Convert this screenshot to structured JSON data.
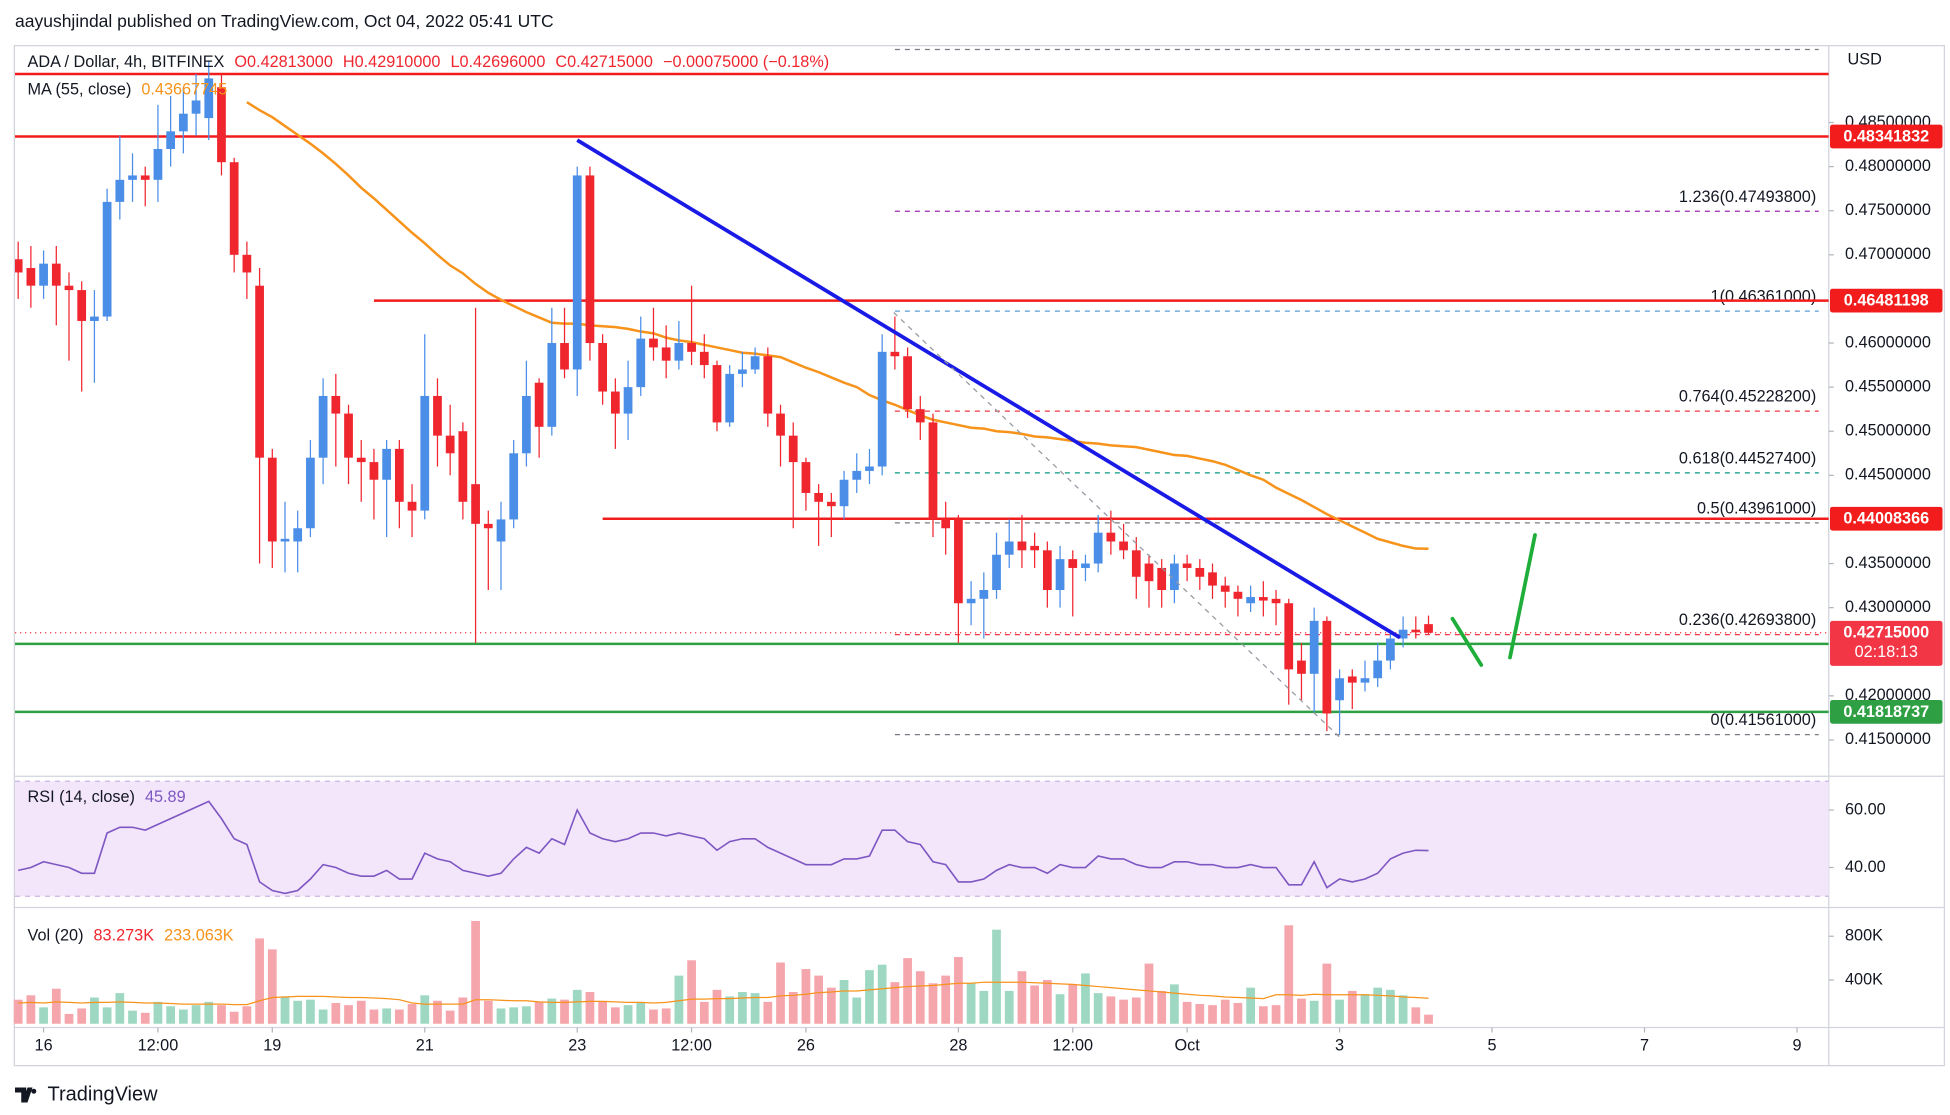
{
  "header": {
    "publisher": "aayushjindal published on TradingView.com, Oct 04, 2022 05:41 UTC"
  },
  "footer": {
    "brand": "TradingView"
  },
  "chart_data": {
    "type": "candlestick",
    "symbol": "ADA / Dollar, 4h, BITFINEX",
    "ohlc_labels": [
      "O0.42813000",
      "H0.42910000",
      "L0.42696000",
      "C0.42715000",
      "−0.00075000 (−0.18%)"
    ],
    "currency": "USD",
    "up_color": "#4a8ee8",
    "down_color": "#f0262f",
    "xlim": [
      -9,
      562
    ],
    "xticks": [
      {
        "value": 0,
        "label": "16"
      },
      {
        "value": 36,
        "label": "12:00"
      },
      {
        "value": 72,
        "label": "19"
      },
      {
        "value": 120,
        "label": "21"
      },
      {
        "value": 168,
        "label": "23"
      },
      {
        "value": 204,
        "label": "12:00"
      },
      {
        "value": 240,
        "label": "26"
      },
      {
        "value": 288,
        "label": "28"
      },
      {
        "value": 324,
        "label": "12:00"
      },
      {
        "value": 360,
        "label": "Oct"
      },
      {
        "value": 408,
        "label": "3"
      },
      {
        "value": 456,
        "label": "5"
      },
      {
        "value": 504,
        "label": "7"
      },
      {
        "value": 552,
        "label": "9"
      }
    ],
    "ylim": [
      0.41131,
      0.49322
    ],
    "yticks": [
      {
        "value": 0.485,
        "label": "0.48500000"
      },
      {
        "value": 0.48,
        "label": "0.48000000"
      },
      {
        "value": 0.475,
        "label": "0.47500000"
      },
      {
        "value": 0.47,
        "label": "0.47000000"
      },
      {
        "value": 0.46,
        "label": "0.46000000"
      },
      {
        "value": 0.455,
        "label": "0.45500000"
      },
      {
        "value": 0.45,
        "label": "0.45000000"
      },
      {
        "value": 0.445,
        "label": "0.44500000"
      },
      {
        "value": 0.435,
        "label": "0.43500000"
      },
      {
        "value": 0.43,
        "label": "0.43000000"
      },
      {
        "value": 0.42,
        "label": "0.42000000"
      },
      {
        "value": 0.415,
        "label": "0.41500000"
      }
    ],
    "x": [
      -8,
      -4,
      0,
      4,
      8,
      12,
      16,
      20,
      24,
      28,
      32,
      36,
      40,
      44,
      48,
      52,
      56,
      60,
      64,
      68,
      72,
      76,
      80,
      84,
      88,
      92,
      96,
      100,
      104,
      108,
      112,
      116,
      120,
      124,
      128,
      132,
      136,
      140,
      144,
      148,
      152,
      156,
      160,
      164,
      168,
      172,
      176,
      180,
      184,
      188,
      192,
      196,
      200,
      204,
      208,
      212,
      216,
      220,
      224,
      228,
      232,
      236,
      240,
      244,
      248,
      252,
      256,
      260,
      264,
      268,
      272,
      276,
      280,
      284,
      288,
      292,
      296,
      300,
      304,
      308,
      312,
      316,
      320,
      324,
      328,
      332,
      336,
      340,
      344,
      348,
      352,
      356,
      360,
      364,
      368,
      372,
      376,
      380,
      384,
      388,
      392,
      396,
      400,
      404,
      408,
      412,
      416,
      420,
      424,
      428,
      432,
      436
    ],
    "open": [
      0.4695,
      0.4685,
      0.4665,
      0.469,
      0.4665,
      0.466,
      0.4625,
      0.463,
      0.476,
      0.4785,
      0.479,
      0.4785,
      0.482,
      0.484,
      0.486,
      0.4855,
      0.489,
      0.4805,
      0.47,
      0.4665,
      0.447,
      0.4375,
      0.4375,
      0.439,
      0.447,
      0.454,
      0.452,
      0.447,
      0.4465,
      0.4445,
      0.448,
      0.442,
      0.441,
      0.454,
      0.4495,
      0.45,
      0.444,
      0.4395,
      0.4375,
      0.44,
      0.4475,
      0.4555,
      0.4505,
      0.46,
      0.457,
      0.479,
      0.46,
      0.4545,
      0.452,
      0.455,
      0.4605,
      0.4595,
      0.458,
      0.46,
      0.459,
      0.4575,
      0.451,
      0.4565,
      0.457,
      0.4585,
      0.452,
      0.4495,
      0.4465,
      0.443,
      0.442,
      0.4415,
      0.4445,
      0.4455,
      0.446,
      0.459,
      0.4585,
      0.4525,
      0.451,
      0.44,
      0.44,
      0.4305,
      0.431,
      0.432,
      0.436,
      0.4375,
      0.437,
      0.4365,
      0.432,
      0.4355,
      0.4345,
      0.435,
      0.4385,
      0.4375,
      0.4365,
      0.435,
      0.4345,
      0.432,
      0.435,
      0.4345,
      0.434,
      0.4325,
      0.4318,
      0.4305,
      0.4312,
      0.431,
      0.4305,
      0.424,
      0.4225,
      0.4285,
      0.4195,
      0.4222,
      0.4215,
      0.422,
      0.424,
      0.4265,
      0.4275,
      0.42813
    ],
    "high": [
      0.4715,
      0.471,
      0.4705,
      0.471,
      0.468,
      0.467,
      0.466,
      0.4775,
      0.4835,
      0.4815,
      0.48,
      0.487,
      0.488,
      0.489,
      0.4905,
      0.492,
      0.4905,
      0.481,
      0.4715,
      0.4685,
      0.448,
      0.442,
      0.441,
      0.449,
      0.456,
      0.4565,
      0.453,
      0.449,
      0.448,
      0.449,
      0.449,
      0.444,
      0.461,
      0.456,
      0.453,
      0.451,
      0.464,
      0.441,
      0.442,
      0.449,
      0.458,
      0.456,
      0.464,
      0.464,
      0.48,
      0.48,
      0.461,
      0.456,
      0.458,
      0.463,
      0.464,
      0.462,
      0.4625,
      0.4665,
      0.461,
      0.458,
      0.4575,
      0.459,
      0.4595,
      0.4595,
      0.453,
      0.451,
      0.447,
      0.444,
      0.443,
      0.4455,
      0.4475,
      0.448,
      0.461,
      0.463,
      0.4595,
      0.454,
      0.452,
      0.442,
      0.4405,
      0.433,
      0.434,
      0.4385,
      0.44,
      0.4405,
      0.4385,
      0.4375,
      0.437,
      0.4365,
      0.436,
      0.4405,
      0.441,
      0.4395,
      0.438,
      0.436,
      0.4355,
      0.436,
      0.436,
      0.4355,
      0.435,
      0.4335,
      0.4325,
      0.4325,
      0.433,
      0.432,
      0.431,
      0.426,
      0.43,
      0.429,
      0.423,
      0.423,
      0.424,
      0.426,
      0.4275,
      0.429,
      0.429,
      0.4291
    ],
    "low": [
      0.465,
      0.464,
      0.465,
      0.462,
      0.458,
      0.4545,
      0.4555,
      0.4625,
      0.474,
      0.476,
      0.4755,
      0.476,
      0.48,
      0.4815,
      0.4835,
      0.483,
      0.479,
      0.468,
      0.465,
      0.435,
      0.4345,
      0.434,
      0.434,
      0.438,
      0.444,
      0.446,
      0.444,
      0.442,
      0.44,
      0.438,
      0.439,
      0.438,
      0.44,
      0.446,
      0.445,
      0.44,
      0.426,
      0.432,
      0.432,
      0.439,
      0.446,
      0.447,
      0.4495,
      0.456,
      0.454,
      0.458,
      0.453,
      0.448,
      0.449,
      0.454,
      0.458,
      0.456,
      0.457,
      0.4575,
      0.456,
      0.45,
      0.4505,
      0.455,
      0.4565,
      0.4505,
      0.446,
      0.439,
      0.441,
      0.437,
      0.438,
      0.44,
      0.443,
      0.444,
      0.445,
      0.457,
      0.4515,
      0.449,
      0.438,
      0.436,
      0.426,
      0.428,
      0.4265,
      0.431,
      0.4345,
      0.4345,
      0.4345,
      0.43,
      0.43,
      0.429,
      0.433,
      0.434,
      0.436,
      0.4355,
      0.431,
      0.43,
      0.43,
      0.4305,
      0.433,
      0.432,
      0.431,
      0.43,
      0.429,
      0.4295,
      0.429,
      0.428,
      0.419,
      0.4195,
      0.418,
      0.416,
      0.4156,
      0.4185,
      0.4205,
      0.421,
      0.423,
      0.4255,
      0.4265,
      0.42696
    ],
    "close": [
      0.468,
      0.4665,
      0.469,
      0.4665,
      0.466,
      0.4625,
      0.463,
      0.476,
      0.4785,
      0.479,
      0.4785,
      0.482,
      0.484,
      0.486,
      0.4875,
      0.49,
      0.4805,
      0.47,
      0.468,
      0.447,
      0.4375,
      0.4378,
      0.439,
      0.447,
      0.454,
      0.452,
      0.447,
      0.4465,
      0.4445,
      0.448,
      0.442,
      0.441,
      0.454,
      0.4495,
      0.4475,
      0.442,
      0.4395,
      0.439,
      0.44,
      0.4475,
      0.454,
      0.4505,
      0.46,
      0.457,
      0.479,
      0.46,
      0.4545,
      0.452,
      0.455,
      0.4605,
      0.4595,
      0.458,
      0.46,
      0.459,
      0.4575,
      0.451,
      0.4565,
      0.457,
      0.4585,
      0.452,
      0.4495,
      0.4465,
      0.443,
      0.442,
      0.4415,
      0.4445,
      0.4455,
      0.446,
      0.459,
      0.4585,
      0.4525,
      0.451,
      0.44,
      0.439,
      0.4305,
      0.431,
      0.432,
      0.436,
      0.4375,
      0.4365,
      0.4365,
      0.432,
      0.4355,
      0.4345,
      0.435,
      0.4385,
      0.4375,
      0.4365,
      0.4335,
      0.433,
      0.432,
      0.435,
      0.4345,
      0.4335,
      0.4325,
      0.4318,
      0.431,
      0.4312,
      0.4308,
      0.4305,
      0.423,
      0.4225,
      0.4285,
      0.418,
      0.422,
      0.4215,
      0.422,
      0.424,
      0.4265,
      0.4275,
      0.4272,
      0.42715
    ],
    "ma": {
      "name": "MA (55, close)",
      "value_label": "0.43667745",
      "color": "#f7931a",
      "values": [
        null,
        null,
        null,
        null,
        null,
        null,
        null,
        null,
        null,
        null,
        null,
        null,
        null,
        null,
        null,
        null,
        null,
        null,
        0.4873,
        0.4864,
        0.4856,
        0.4846,
        0.4836,
        0.4826,
        0.4815,
        0.4803,
        0.479,
        0.4776,
        0.4764,
        0.4751,
        0.4738,
        0.4725,
        0.4713,
        0.47,
        0.4688,
        0.4679,
        0.4667,
        0.4657,
        0.4649,
        0.4642,
        0.4635,
        0.4629,
        0.4623,
        0.4622,
        0.4622,
        0.462,
        0.4619,
        0.4618,
        0.4616,
        0.4613,
        0.4611,
        0.4606,
        0.4603,
        0.4601,
        0.4598,
        0.4595,
        0.4592,
        0.4589,
        0.4588,
        0.4586,
        0.4584,
        0.4578,
        0.4572,
        0.4567,
        0.4561,
        0.4555,
        0.455,
        0.4541,
        0.4535,
        0.453,
        0.4524,
        0.4518,
        0.4513,
        0.451,
        0.4507,
        0.4504,
        0.4503,
        0.45,
        0.4499,
        0.4497,
        0.4494,
        0.4493,
        0.4491,
        0.4489,
        0.4487,
        0.4486,
        0.4484,
        0.4483,
        0.4482,
        0.4479,
        0.4476,
        0.4473,
        0.4472,
        0.4469,
        0.4466,
        0.4462,
        0.4456,
        0.445,
        0.4445,
        0.4436,
        0.4429,
        0.4422,
        0.4414,
        0.4406,
        0.4399,
        0.4392,
        0.4385,
        0.4378,
        0.4374,
        0.437,
        0.4367,
        0.43667745
      ]
    },
    "levels": [
      {
        "value": 0.4905,
        "color": "#f21c1c"
      },
      {
        "value": 0.48341832,
        "color": "#f21c1c",
        "tag": true
      },
      {
        "value": 0.46481198,
        "color": "#f21c1c",
        "tag": true,
        "start": 104
      },
      {
        "value": 0.44008366,
        "color": "#f21c1c",
        "tag": true,
        "start": 176
      },
      {
        "value": 0.42589288,
        "color": "#2ea043",
        "tag": true
      },
      {
        "value": 0.41818737,
        "color": "#2ea043",
        "tag": true
      }
    ],
    "fib_start": 268,
    "fib": [
      {
        "value": 0.49327,
        "color": "#787b86"
      },
      {
        "value": 0.474938,
        "label": "1.236(0.47493800)",
        "color": "#9c27b0"
      },
      {
        "value": 0.46361,
        "label": "1(0.46361000)",
        "color": "#5b9bd5"
      },
      {
        "value": 0.452282,
        "label": "0.764(0.45228200)",
        "color": "#f23645"
      },
      {
        "value": 0.445274,
        "label": "0.618(0.44527400)",
        "color": "#089981"
      },
      {
        "value": 0.43961,
        "label": "0.5(0.43961000)",
        "color": "#787b86"
      },
      {
        "value": 0.426938,
        "label": "0.236(0.42693800)",
        "color": "#f23645"
      },
      {
        "value": 0.41561,
        "label": "0(0.41561000)",
        "color": "#787b86"
      }
    ],
    "trendline": {
      "x": [
        168,
        427
      ],
      "y": [
        0.483,
        0.4266
      ],
      "color": "#1a1ae6"
    },
    "price_tag": {
      "value": 0.42715,
      "label": "0.42715000",
      "countdown": "02:18:13",
      "color": "#f23645"
    },
    "rsi": {
      "name": "RSI (14, close)",
      "value_label": "45.89",
      "color": "#7e57c2",
      "band": [
        30,
        70
      ],
      "band_color": "#f3e6fb",
      "ylim": [
        29.57,
        69.57
      ],
      "yticks": [
        {
          "value": 60,
          "label": "60.00"
        },
        {
          "value": 40,
          "label": "40.00"
        }
      ],
      "values": [
        39,
        40,
        42,
        41,
        40,
        38,
        38,
        52,
        54,
        54,
        53,
        55,
        57,
        59,
        61,
        63,
        57,
        50,
        48,
        35,
        32,
        31,
        32,
        36,
        41,
        40,
        38,
        37,
        37,
        39,
        36,
        36,
        45,
        43,
        42,
        39,
        38,
        37,
        38,
        43,
        47,
        45,
        50,
        48,
        60,
        52,
        50,
        49,
        50,
        52,
        52,
        51,
        52,
        51,
        50,
        46,
        49,
        50,
        50,
        47,
        45,
        43,
        41,
        41,
        41,
        43,
        43,
        44,
        53,
        53,
        49,
        48,
        42,
        41,
        35,
        35,
        36,
        39,
        41,
        40,
        40,
        38,
        41,
        40,
        40,
        44,
        43,
        43,
        41,
        40,
        40,
        42,
        42,
        41,
        41,
        40,
        40,
        41,
        40,
        40,
        34,
        34,
        42,
        33,
        36,
        35,
        36,
        38,
        43,
        45,
        46,
        45.89
      ]
    },
    "volume": {
      "name": "Vol (20)",
      "value_label": "83.273K",
      "up_color": "#9ed8c3",
      "down_color": "#f5a5ac",
      "ylim": [
        0,
        1017000
      ],
      "yticks": [
        {
          "value": 800000,
          "label": "800K"
        },
        {
          "value": 400000,
          "label": "400K"
        }
      ],
      "values": [
        220000,
        260000,
        150000,
        320000,
        90000,
        140000,
        240000,
        150000,
        280000,
        120000,
        100000,
        200000,
        160000,
        130000,
        170000,
        200000,
        170000,
        110000,
        160000,
        780000,
        680000,
        250000,
        210000,
        220000,
        130000,
        190000,
        170000,
        210000,
        130000,
        140000,
        130000,
        180000,
        260000,
        210000,
        120000,
        240000,
        940000,
        210000,
        140000,
        150000,
        160000,
        200000,
        230000,
        220000,
        310000,
        290000,
        200000,
        150000,
        170000,
        190000,
        130000,
        140000,
        440000,
        580000,
        200000,
        310000,
        250000,
        290000,
        280000,
        200000,
        560000,
        290000,
        500000,
        440000,
        330000,
        400000,
        240000,
        490000,
        540000,
        380000,
        600000,
        480000,
        370000,
        440000,
        610000,
        370000,
        300000,
        860000,
        300000,
        480000,
        350000,
        400000,
        270000,
        360000,
        460000,
        280000,
        250000,
        220000,
        240000,
        550000,
        300000,
        360000,
        200000,
        180000,
        170000,
        220000,
        190000,
        330000,
        160000,
        170000,
        900000,
        230000,
        210000,
        550000,
        220000,
        300000,
        270000,
        330000,
        310000,
        260000,
        150000,
        83273
      ],
      "ma": {
        "value_label": "233.063K",
        "color": "#f7931a",
        "values": [
          190000,
          195000,
          190000,
          200000,
          195000,
          190000,
          195000,
          195000,
          200000,
          195000,
          190000,
          190000,
          185000,
          180000,
          180000,
          180000,
          180000,
          175000,
          175000,
          210000,
          240000,
          245000,
          250000,
          250000,
          250000,
          245000,
          240000,
          240000,
          235000,
          230000,
          220000,
          190000,
          180000,
          180000,
          180000,
          180000,
          220000,
          220000,
          215000,
          210000,
          210000,
          200000,
          195000,
          195000,
          200000,
          205000,
          205000,
          200000,
          195000,
          195000,
          190000,
          195000,
          210000,
          225000,
          225000,
          230000,
          230000,
          235000,
          240000,
          240000,
          255000,
          260000,
          270000,
          285000,
          290000,
          300000,
          300000,
          310000,
          320000,
          330000,
          340000,
          345000,
          350000,
          360000,
          370000,
          370000,
          380000,
          380000,
          380000,
          380000,
          375000,
          370000,
          365000,
          360000,
          350000,
          340000,
          330000,
          320000,
          310000,
          300000,
          290000,
          280000,
          270000,
          260000,
          255000,
          245000,
          240000,
          235000,
          230000,
          265000,
          265000,
          260000,
          270000,
          265000,
          265000,
          265000,
          265000,
          260000,
          255000,
          245000,
          240000,
          233063
        ]
      }
    }
  }
}
